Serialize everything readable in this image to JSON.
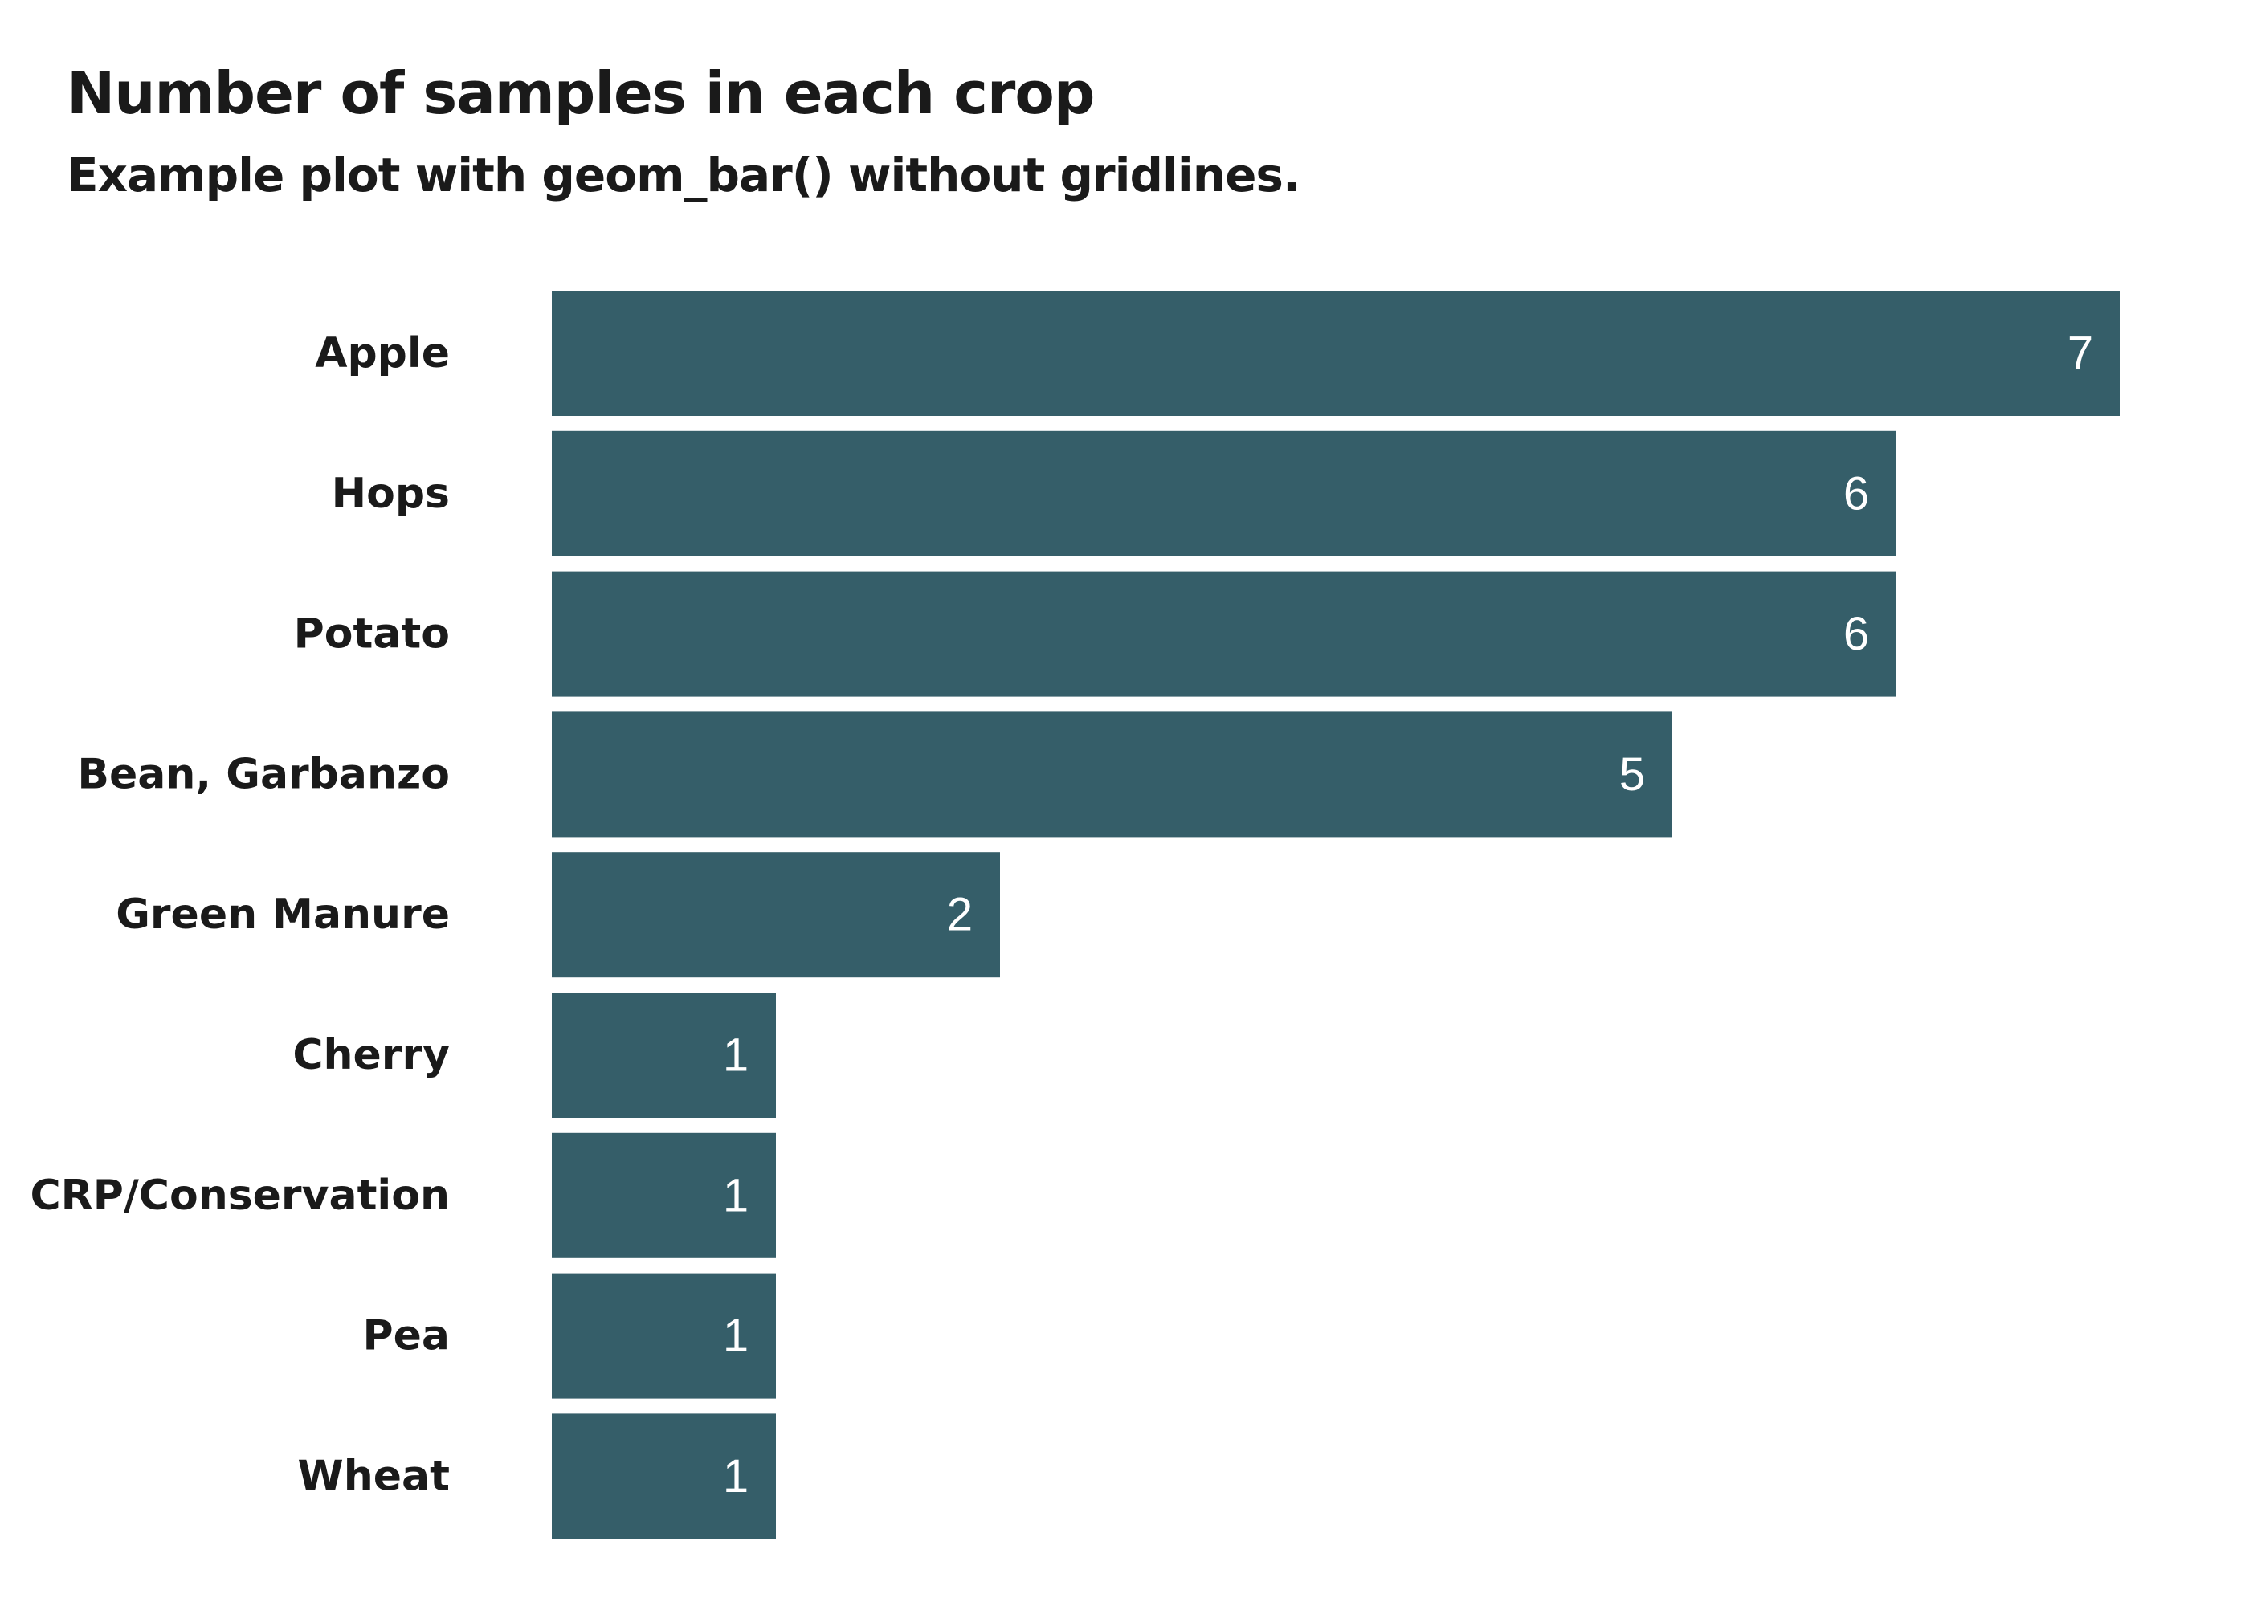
{
  "chart_data": {
    "type": "bar",
    "orientation": "horizontal",
    "title": "Number of samples in each crop",
    "subtitle": "Example plot with geom_bar() without gridlines.",
    "xlabel": "",
    "ylabel": "",
    "categories": [
      "Apple",
      "Hops",
      "Potato",
      "Bean, Garbanzo",
      "Green Manure",
      "Cherry",
      "CRP/Conservation",
      "Pea",
      "Wheat"
    ],
    "values": [
      7,
      6,
      6,
      5,
      2,
      1,
      1,
      1,
      1
    ],
    "data_labels": [
      "7",
      "6",
      "6",
      "5",
      "2",
      "1",
      "1",
      "1",
      "1"
    ],
    "xlim": [
      0,
      7
    ],
    "grid": false,
    "legend": "none",
    "bar_color": "#355e69",
    "label_color": "#ffffff"
  }
}
